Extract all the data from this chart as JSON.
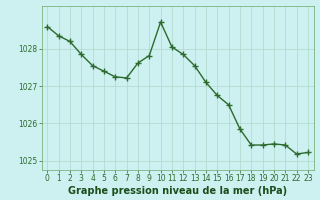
{
  "x": [
    0,
    1,
    2,
    3,
    4,
    5,
    6,
    7,
    8,
    9,
    10,
    11,
    12,
    13,
    14,
    15,
    16,
    17,
    18,
    19,
    20,
    21,
    22,
    23
  ],
  "y": [
    1028.6,
    1028.35,
    1028.2,
    1027.85,
    1027.55,
    1027.4,
    1027.25,
    1027.22,
    1027.62,
    1027.82,
    1028.72,
    1028.05,
    1027.85,
    1027.55,
    1027.1,
    1026.75,
    1026.5,
    1025.85,
    1025.42,
    1025.42,
    1025.45,
    1025.42,
    1025.18,
    1025.22
  ],
  "line_color": "#2d6a2d",
  "marker": "+",
  "marker_size": 4,
  "marker_lw": 1.0,
  "line_width": 1.0,
  "background_color": "#cdf0f0",
  "grid_color": "#b0d8cc",
  "xlabel": "Graphe pression niveau de la mer (hPa)",
  "xlabel_color": "#1a4d1a",
  "ylim": [
    1024.75,
    1029.15
  ],
  "yticks": [
    1025,
    1026,
    1027,
    1028
  ],
  "xlim": [
    -0.5,
    23.5
  ],
  "xticks": [
    0,
    1,
    2,
    3,
    4,
    5,
    6,
    7,
    8,
    9,
    10,
    11,
    12,
    13,
    14,
    15,
    16,
    17,
    18,
    19,
    20,
    21,
    22,
    23
  ],
  "tick_color": "#2d6a2d",
  "tick_fontsize": 5.5,
  "xlabel_fontsize": 7.0,
  "spine_color": "#6aaa6a"
}
